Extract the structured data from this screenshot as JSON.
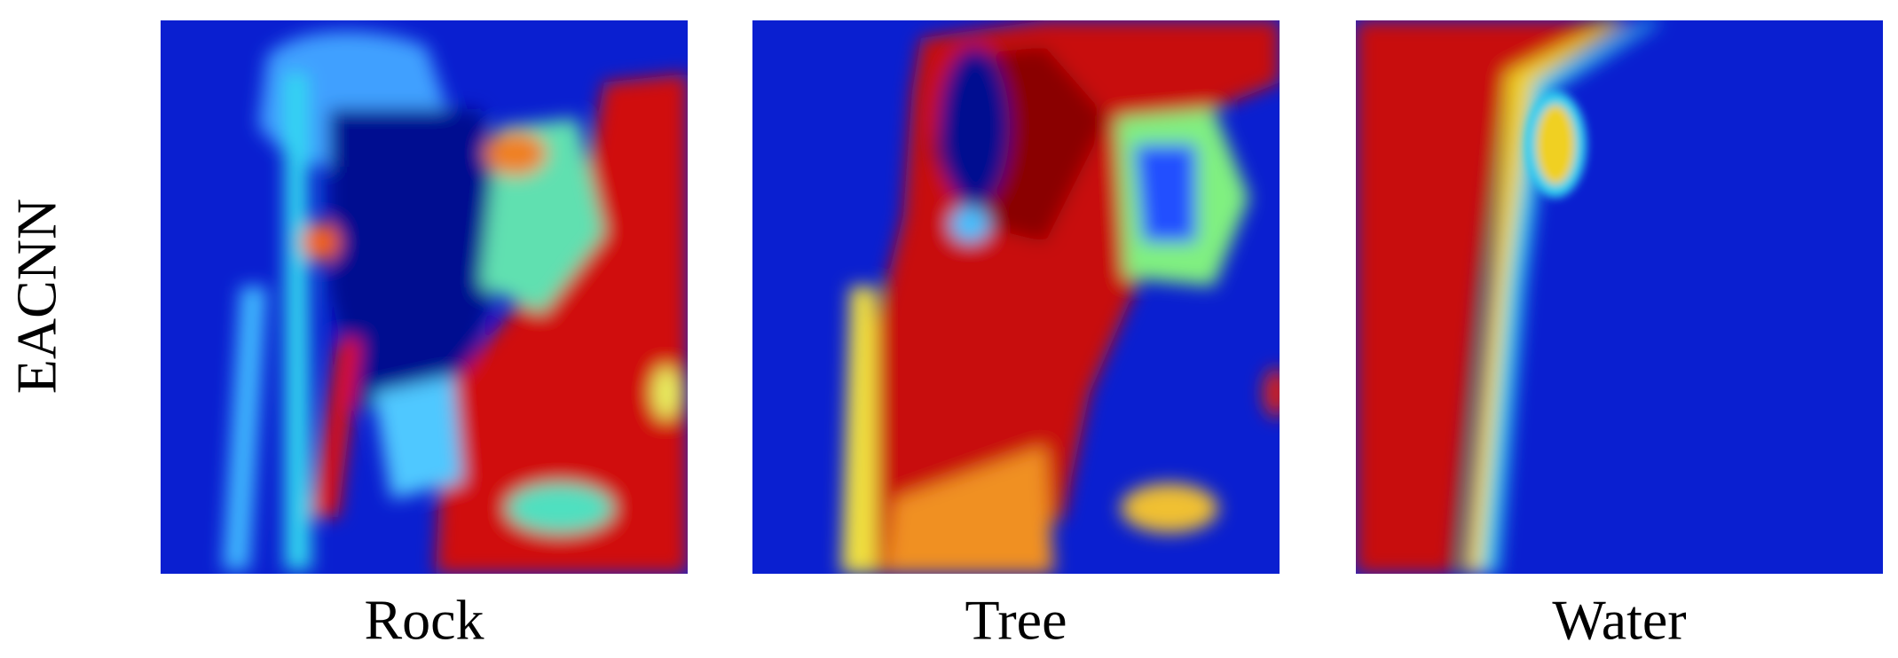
{
  "row_label": "EACNN",
  "panels": [
    {
      "label": "Rock"
    },
    {
      "label": "Tree"
    },
    {
      "label": "Water"
    }
  ]
}
